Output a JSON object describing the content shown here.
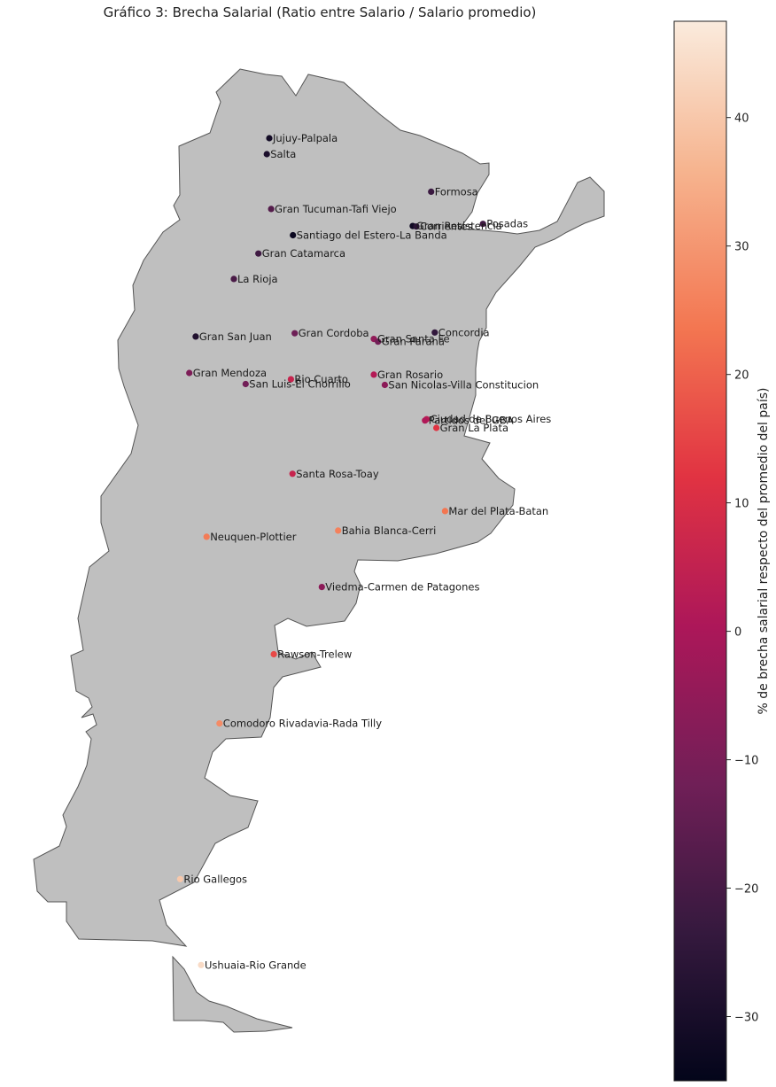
{
  "title": "Gráfico 3: Brecha Salarial (Ratio entre Salario / Salario promedio)",
  "colorbar": {
    "label": "% de brecha salarial respecto del promedio del país)",
    "min": -35,
    "max": 47.5,
    "ticks": [
      -30,
      -20,
      -10,
      0,
      10,
      20,
      30,
      40
    ],
    "colormap": "rocket",
    "stops": [
      "#03051a",
      "#35193e",
      "#701f57",
      "#ad1759",
      "#e13342",
      "#f37651",
      "#f6b48f",
      "#faebdd"
    ]
  },
  "land_color": "#bfbfbf",
  "border_color": "#555555",
  "chart_data": {
    "type": "scatter",
    "title": "Gráfico 3: Brecha Salarial (Ratio entre Salario / Salario promedio)",
    "value_label": "% de brecha salarial respecto del promedio del país)",
    "points": [
      {
        "name": "Jujuy-Palpala",
        "lon": -65.3,
        "lat": -24.2,
        "value": -31
      },
      {
        "name": "Salta",
        "lon": -65.41,
        "lat": -24.79,
        "value": -29
      },
      {
        "name": "Formosa",
        "lon": -58.18,
        "lat": -26.18,
        "value": -22
      },
      {
        "name": "Gran Tucuman-Tafi Viejo",
        "lon": -65.22,
        "lat": -26.82,
        "value": -17
      },
      {
        "name": "Gran Resistencia",
        "lon": -58.99,
        "lat": -27.45,
        "value": -32
      },
      {
        "name": "Corrientes",
        "lon": -58.83,
        "lat": -27.47,
        "value": -26
      },
      {
        "name": "Posadas",
        "lon": -55.9,
        "lat": -27.37,
        "value": -21
      },
      {
        "name": "Santiago del Estero-La Banda",
        "lon": -64.26,
        "lat": -27.79,
        "value": -33
      },
      {
        "name": "Gran Catamarca",
        "lon": -65.78,
        "lat": -28.47,
        "value": -21
      },
      {
        "name": "La Rioja",
        "lon": -66.86,
        "lat": -29.41,
        "value": -19
      },
      {
        "name": "Gran Cordoba",
        "lon": -64.18,
        "lat": -31.42,
        "value": -12
      },
      {
        "name": "Gran San Juan",
        "lon": -68.54,
        "lat": -31.54,
        "value": -28
      },
      {
        "name": "Gran Santa Fe",
        "lon": -60.7,
        "lat": -31.63,
        "value": -5
      },
      {
        "name": "Gran Parana",
        "lon": -60.52,
        "lat": -31.73,
        "value": -11
      },
      {
        "name": "Concordia",
        "lon": -58.02,
        "lat": -31.39,
        "value": -24
      },
      {
        "name": "Gran Mendoza",
        "lon": -68.82,
        "lat": -32.89,
        "value": -9
      },
      {
        "name": "Gran Rosario",
        "lon": -60.7,
        "lat": -32.95,
        "value": 2
      },
      {
        "name": "Rio Cuarto",
        "lon": -64.35,
        "lat": -33.12,
        "value": 6
      },
      {
        "name": "San Luis-El Chorrillo",
        "lon": -66.34,
        "lat": -33.3,
        "value": -11
      },
      {
        "name": "San Nicolas-Villa Constitucion",
        "lon": -60.22,
        "lat": -33.33,
        "value": -6
      },
      {
        "name": "Ciudad de Buenos Aires",
        "lon": -58.38,
        "lat": -34.6,
        "value": 3
      },
      {
        "name": "Partidos del GBA",
        "lon": -58.45,
        "lat": -34.65,
        "value": 1
      },
      {
        "name": "Gran La Plata",
        "lon": -57.95,
        "lat": -34.92,
        "value": 12
      },
      {
        "name": "Santa Rosa-Toay",
        "lon": -64.28,
        "lat": -36.62,
        "value": 6
      },
      {
        "name": "Mar del Plata-Batan",
        "lon": -57.57,
        "lat": -38.0,
        "value": 24
      },
      {
        "name": "Neuquen-Plottier",
        "lon": -68.06,
        "lat": -38.95,
        "value": 25
      },
      {
        "name": "Bahia Blanca-Cerri",
        "lon": -62.27,
        "lat": -38.72,
        "value": 26
      },
      {
        "name": "Viedma-Carmen de Patagones",
        "lon": -62.99,
        "lat": -40.81,
        "value": -6
      },
      {
        "name": "Rawson-Trelew",
        "lon": -65.1,
        "lat": -43.3,
        "value": 16
      },
      {
        "name": "Comodoro Rivadavia-Rada Tilly",
        "lon": -67.49,
        "lat": -45.86,
        "value": 28
      },
      {
        "name": "Rio Gallegos",
        "lon": -69.22,
        "lat": -51.62,
        "value": 40
      },
      {
        "name": "Ushuaia-Rio Grande",
        "lon": -68.3,
        "lat": -54.8,
        "value": 44
      }
    ]
  }
}
